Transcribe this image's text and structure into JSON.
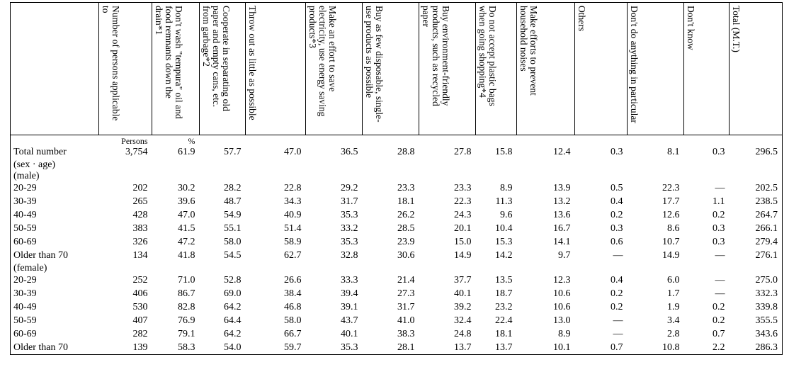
{
  "table": {
    "header": [
      "Number of persons applicable to",
      "Don't wash \"tempura\" oil and food remnants down the drain*1",
      "Cooperate in separating old paper and empty cans, etc. from garbage*2",
      "Throw out as little as possible",
      "Make an effort to save electricity, use energy saving products*3",
      "Buy as few disposable, single-use products as possible",
      "Buy environment-friendly products, such as recycled paper",
      "Do not accept plastic bags when going shopping*4",
      "Make efforts to prevent household noises",
      "Others",
      "Don't do anything in particular",
      "Don't know",
      "Total (M.T.)"
    ],
    "units": [
      "Persons",
      "%"
    ],
    "rows": [
      {
        "label": "Total number",
        "cells": [
          "3,754",
          "61.9",
          "57.7",
          "47.0",
          "36.5",
          "28.8",
          "27.8",
          "15.8",
          "12.4",
          "0.3",
          "8.1",
          "0.3",
          "296.5"
        ]
      },
      {
        "label": "(sex · age)"
      },
      {
        "label": "(male)"
      },
      {
        "label": "20-29",
        "cells": [
          "202",
          "30.2",
          "28.2",
          "22.8",
          "29.2",
          "23.3",
          "23.3",
          "8.9",
          "13.9",
          "0.5",
          "22.3",
          "—",
          "202.5"
        ]
      },
      {
        "label": "30-39",
        "cells": [
          "265",
          "39.6",
          "48.7",
          "34.3",
          "31.7",
          "18.1",
          "22.3",
          "11.3",
          "13.2",
          "0.4",
          "17.7",
          "1.1",
          "238.5"
        ]
      },
      {
        "label": "40-49",
        "cells": [
          "428",
          "47.0",
          "54.9",
          "40.9",
          "35.3",
          "26.2",
          "24.3",
          "9.6",
          "13.6",
          "0.2",
          "12.6",
          "0.2",
          "264.7"
        ]
      },
      {
        "label": "50-59",
        "cells": [
          "383",
          "41.5",
          "55.1",
          "51.4",
          "33.2",
          "28.5",
          "20.1",
          "10.4",
          "16.7",
          "0.3",
          "8.6",
          "0.3",
          "266.1"
        ]
      },
      {
        "label": "60-69",
        "cells": [
          "326",
          "47.2",
          "58.0",
          "58.9",
          "35.3",
          "23.9",
          "15.0",
          "15.3",
          "14.1",
          "0.6",
          "10.7",
          "0.3",
          "279.4"
        ]
      },
      {
        "label": "Older than 70",
        "cells": [
          "134",
          "41.8",
          "54.5",
          "62.7",
          "32.8",
          "30.6",
          "14.9",
          "14.2",
          "9.7",
          "—",
          "14.9",
          "—",
          "276.1"
        ]
      },
      {
        "label": "(female)"
      },
      {
        "label": "20-29",
        "cells": [
          "252",
          "71.0",
          "52.8",
          "26.6",
          "33.3",
          "21.4",
          "37.7",
          "13.5",
          "12.3",
          "0.4",
          "6.0",
          "—",
          "275.0"
        ]
      },
      {
        "label": "30-39",
        "cells": [
          "406",
          "86.7",
          "69.0",
          "38.4",
          "39.4",
          "27.3",
          "40.1",
          "18.7",
          "10.6",
          "0.2",
          "1.7",
          "—",
          "332.3"
        ]
      },
      {
        "label": "40-49",
        "cells": [
          "530",
          "82.8",
          "64.2",
          "46.8",
          "39.1",
          "31.7",
          "39.2",
          "23.2",
          "10.6",
          "0.2",
          "1.9",
          "0.2",
          "339.8"
        ]
      },
      {
        "label": "50-59",
        "cells": [
          "407",
          "76.9",
          "64.4",
          "58.0",
          "43.7",
          "41.0",
          "32.4",
          "22.4",
          "13.0",
          "—",
          "3.4",
          "0.2",
          "355.5"
        ]
      },
      {
        "label": "60-69",
        "cells": [
          "282",
          "79.1",
          "64.2",
          "66.7",
          "40.1",
          "38.3",
          "24.8",
          "18.1",
          "8.9",
          "—",
          "2.8",
          "0.7",
          "343.6"
        ]
      },
      {
        "label": "Older than 70",
        "cells": [
          "139",
          "58.3",
          "54.0",
          "59.7",
          "35.3",
          "28.1",
          "13.7",
          "13.7",
          "10.1",
          "0.7",
          "10.8",
          "2.2",
          "286.3"
        ]
      }
    ]
  }
}
